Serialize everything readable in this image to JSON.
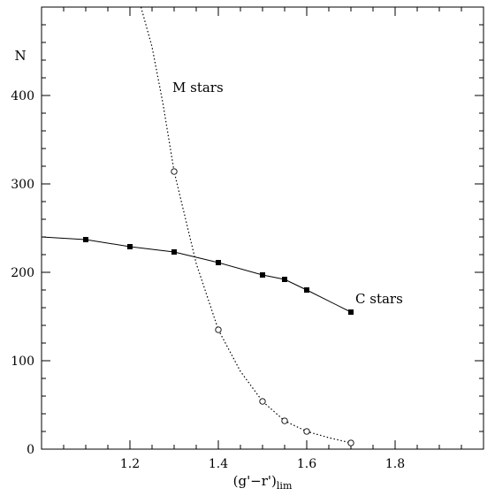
{
  "chart_data": {
    "type": "line",
    "xlabel_main": "(g'−r')",
    "xlabel_sub": "lim",
    "ylabel": "N",
    "xlim": [
      1.0,
      2.0
    ],
    "ylim": [
      0,
      500
    ],
    "x_ticks_labeled": [
      1.2,
      1.4,
      1.6,
      1.8
    ],
    "x_tick_labels": [
      "1.2",
      "1.4",
      "1.6",
      "1.8"
    ],
    "y_ticks_labeled": [
      0,
      100,
      200,
      300,
      400
    ],
    "y_tick_labels": [
      "0",
      "100",
      "200",
      "300",
      "400"
    ],
    "grid": false,
    "series": [
      {
        "name": "C stars",
        "line_style": "solid",
        "marker": "filled-square",
        "color": "#000000",
        "line": [
          [
            1.0,
            240
          ],
          [
            1.1,
            237
          ],
          [
            1.2,
            229
          ],
          [
            1.3,
            223
          ],
          [
            1.4,
            211
          ],
          [
            1.5,
            197
          ],
          [
            1.55,
            192
          ],
          [
            1.6,
            180
          ],
          [
            1.7,
            155
          ]
        ],
        "points": [
          [
            1.1,
            237
          ],
          [
            1.2,
            229
          ],
          [
            1.3,
            223
          ],
          [
            1.4,
            211
          ],
          [
            1.5,
            197
          ],
          [
            1.55,
            192
          ],
          [
            1.6,
            180
          ],
          [
            1.7,
            155
          ]
        ],
        "label_at": [
          1.71,
          165
        ]
      },
      {
        "name": "M stars",
        "line_style": "dotted",
        "marker": "open-circle",
        "color": "#000000",
        "line": [
          [
            1.225,
            500
          ],
          [
            1.25,
            455
          ],
          [
            1.275,
            390
          ],
          [
            1.3,
            314
          ],
          [
            1.35,
            210
          ],
          [
            1.4,
            135
          ],
          [
            1.45,
            88
          ],
          [
            1.5,
            54
          ],
          [
            1.55,
            32
          ],
          [
            1.6,
            20
          ],
          [
            1.65,
            13
          ],
          [
            1.7,
            7
          ]
        ],
        "points": [
          [
            1.3,
            314
          ],
          [
            1.4,
            135
          ],
          [
            1.5,
            54
          ],
          [
            1.55,
            32
          ],
          [
            1.6,
            20
          ],
          [
            1.7,
            7
          ]
        ],
        "label_at": [
          1.3,
          404
        ]
      }
    ]
  }
}
